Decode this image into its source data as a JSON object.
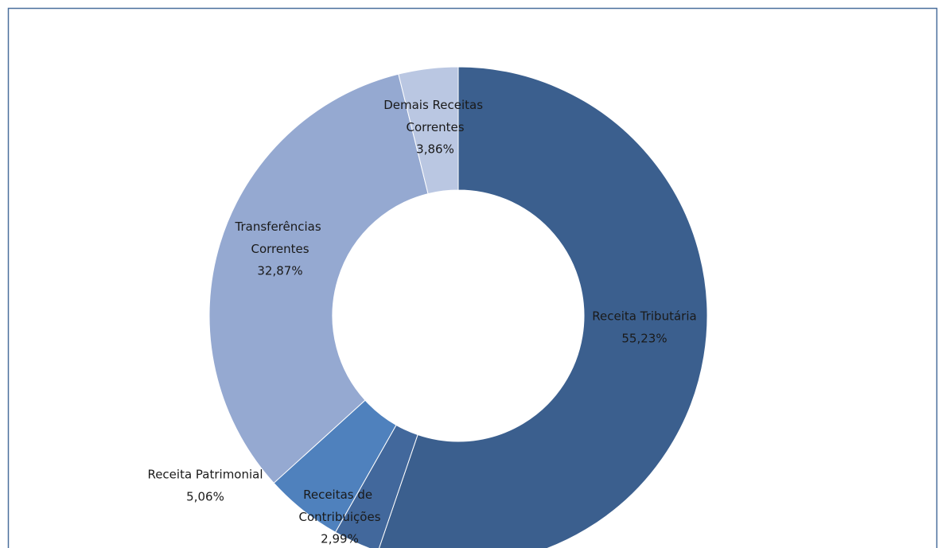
{
  "chart_data": {
    "type": "donut",
    "categories": [
      "Receita Tributária",
      "Receitas de Contribuições",
      "Receita Patrimonial",
      "Transferências Correntes",
      "Demais Receitas Correntes"
    ],
    "values": [
      55.23,
      2.99,
      5.06,
      32.87,
      3.86
    ],
    "value_labels": [
      "55,23%",
      "2,99%",
      "5,06%",
      "32,87%",
      "3,86%"
    ],
    "colors": [
      "#3b5f8e",
      "#42689c",
      "#4f81bd",
      "#95a9d1",
      "#bac7e2"
    ]
  }
}
